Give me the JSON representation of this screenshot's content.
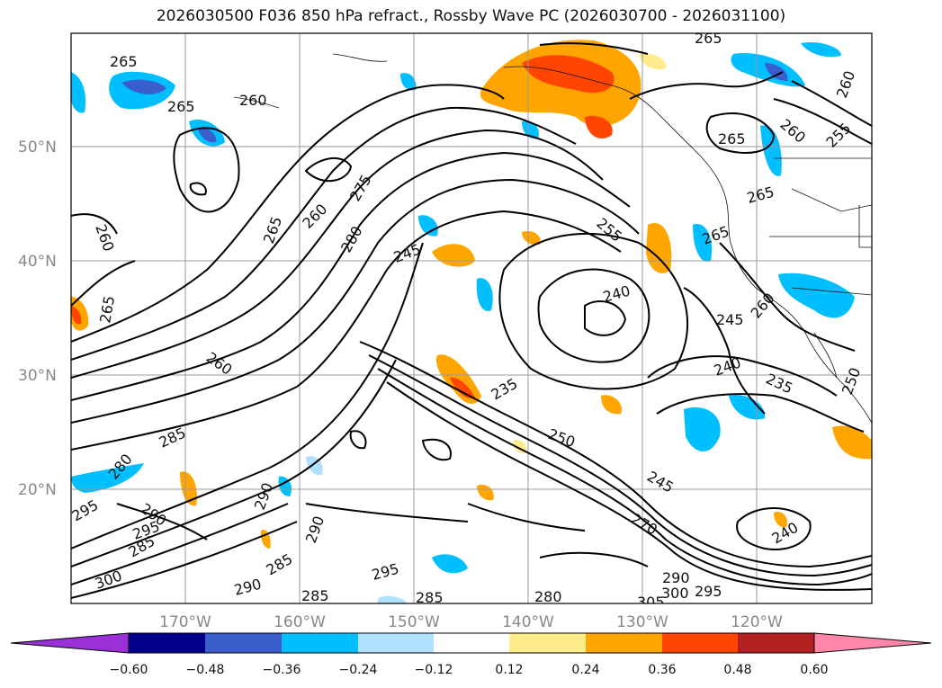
{
  "title": "2026030500 F036 850 hPa refract., Rossby Wave PC (2026030700 - 2026031100)",
  "lat_labels": [
    "50°N",
    "40°N",
    "30°N",
    "20°N"
  ],
  "lon_labels": [
    "170°W",
    "160°W",
    "150°W",
    "140°W",
    "130°W",
    "120°W"
  ],
  "contour_labels": [
    "265",
    "260",
    "265",
    "260",
    "265",
    "265",
    "265",
    "260",
    "255",
    "260",
    "265",
    "260",
    "275",
    "280",
    "245",
    "255",
    "265",
    "240",
    "245",
    "260",
    "265",
    "260",
    "235",
    "240",
    "235",
    "250",
    "285",
    "280",
    "295",
    "290",
    "290",
    "285",
    "295",
    "285",
    "290",
    "295",
    "300",
    "290",
    "285",
    "280",
    "305",
    "300",
    "295",
    "290",
    "270",
    "245",
    "250",
    "240",
    "285"
  ],
  "colorbar": {
    "ticks": [
      "−0.60",
      "−0.48",
      "−0.36",
      "−0.24",
      "−0.12",
      "0.12",
      "0.24",
      "0.36",
      "0.48",
      "0.60"
    ],
    "colors": [
      "#9b30d9",
      "#00008b",
      "#3a5fcd",
      "#00bfff",
      "#b0e2ff",
      "#ffffff",
      "#ffec8b",
      "#ffa500",
      "#ff4500",
      "#b22222",
      "#ff88aa"
    ]
  }
}
